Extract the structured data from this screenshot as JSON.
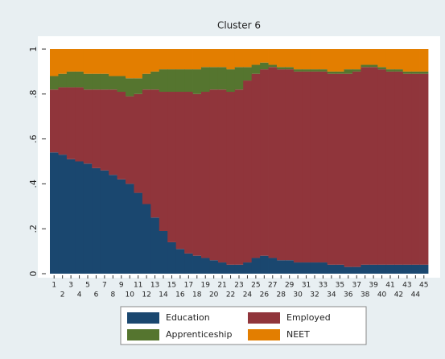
{
  "chart_data": {
    "type": "stacked_bar",
    "title": "Cluster 6",
    "categories": [
      "1",
      "2",
      "3",
      "4",
      "5",
      "6",
      "7",
      "8",
      "9",
      "10",
      "11",
      "12",
      "13",
      "14",
      "15",
      "16",
      "17",
      "18",
      "19",
      "20",
      "21",
      "22",
      "23",
      "24",
      "25",
      "26",
      "27",
      "28",
      "29",
      "30",
      "31",
      "32",
      "33",
      "34",
      "35",
      "36",
      "37",
      "38",
      "39",
      "40",
      "41",
      "42",
      "43",
      "44",
      "45"
    ],
    "series": [
      {
        "name": "Education",
        "color": "#1a476f",
        "values": [
          0.54,
          0.53,
          0.51,
          0.5,
          0.49,
          0.47,
          0.46,
          0.44,
          0.42,
          0.4,
          0.36,
          0.31,
          0.25,
          0.19,
          0.14,
          0.11,
          0.09,
          0.08,
          0.07,
          0.06,
          0.05,
          0.04,
          0.04,
          0.05,
          0.07,
          0.08,
          0.07,
          0.06,
          0.06,
          0.05,
          0.05,
          0.05,
          0.05,
          0.04,
          0.04,
          0.03,
          0.03,
          0.04,
          0.04,
          0.04,
          0.04,
          0.04,
          0.04,
          0.04,
          0.04
        ]
      },
      {
        "name": "Employed",
        "color": "#90353b",
        "values": [
          0.28,
          0.3,
          0.32,
          0.33,
          0.33,
          0.35,
          0.36,
          0.38,
          0.39,
          0.39,
          0.44,
          0.51,
          0.57,
          0.62,
          0.67,
          0.7,
          0.72,
          0.72,
          0.74,
          0.76,
          0.77,
          0.77,
          0.78,
          0.81,
          0.82,
          0.83,
          0.85,
          0.85,
          0.85,
          0.85,
          0.85,
          0.85,
          0.85,
          0.85,
          0.85,
          0.86,
          0.87,
          0.88,
          0.88,
          0.87,
          0.86,
          0.86,
          0.85,
          0.85,
          0.85
        ]
      },
      {
        "name": "Apprenticeship",
        "color": "#55752f",
        "values": [
          0.06,
          0.06,
          0.07,
          0.07,
          0.07,
          0.07,
          0.07,
          0.06,
          0.07,
          0.08,
          0.07,
          0.07,
          0.08,
          0.1,
          0.1,
          0.1,
          0.1,
          0.11,
          0.11,
          0.1,
          0.1,
          0.1,
          0.1,
          0.06,
          0.04,
          0.03,
          0.01,
          0.01,
          0.01,
          0.01,
          0.01,
          0.01,
          0.01,
          0.01,
          0.01,
          0.02,
          0.01,
          0.01,
          0.01,
          0.01,
          0.01,
          0.01,
          0.01,
          0.01,
          0.01
        ]
      },
      {
        "name": "NEET",
        "color": "#e37e00",
        "values": [
          0.12,
          0.11,
          0.1,
          0.1,
          0.11,
          0.11,
          0.11,
          0.12,
          0.12,
          0.13,
          0.13,
          0.11,
          0.1,
          0.09,
          0.09,
          0.09,
          0.09,
          0.09,
          0.08,
          0.08,
          0.08,
          0.09,
          0.08,
          0.08,
          0.07,
          0.06,
          0.07,
          0.08,
          0.08,
          0.09,
          0.09,
          0.09,
          0.09,
          0.1,
          0.1,
          0.09,
          0.09,
          0.07,
          0.07,
          0.08,
          0.09,
          0.09,
          0.1,
          0.1,
          0.1
        ]
      }
    ],
    "ylim": [
      0,
      1
    ],
    "yticks": [
      0,
      {
        "value": 0.2,
        "label": ".2"
      },
      {
        "value": 0.4,
        "label": ".4"
      },
      {
        "value": 0.6,
        "label": ".6"
      },
      {
        "value": 0.8,
        "label": ".8"
      },
      1
    ]
  }
}
